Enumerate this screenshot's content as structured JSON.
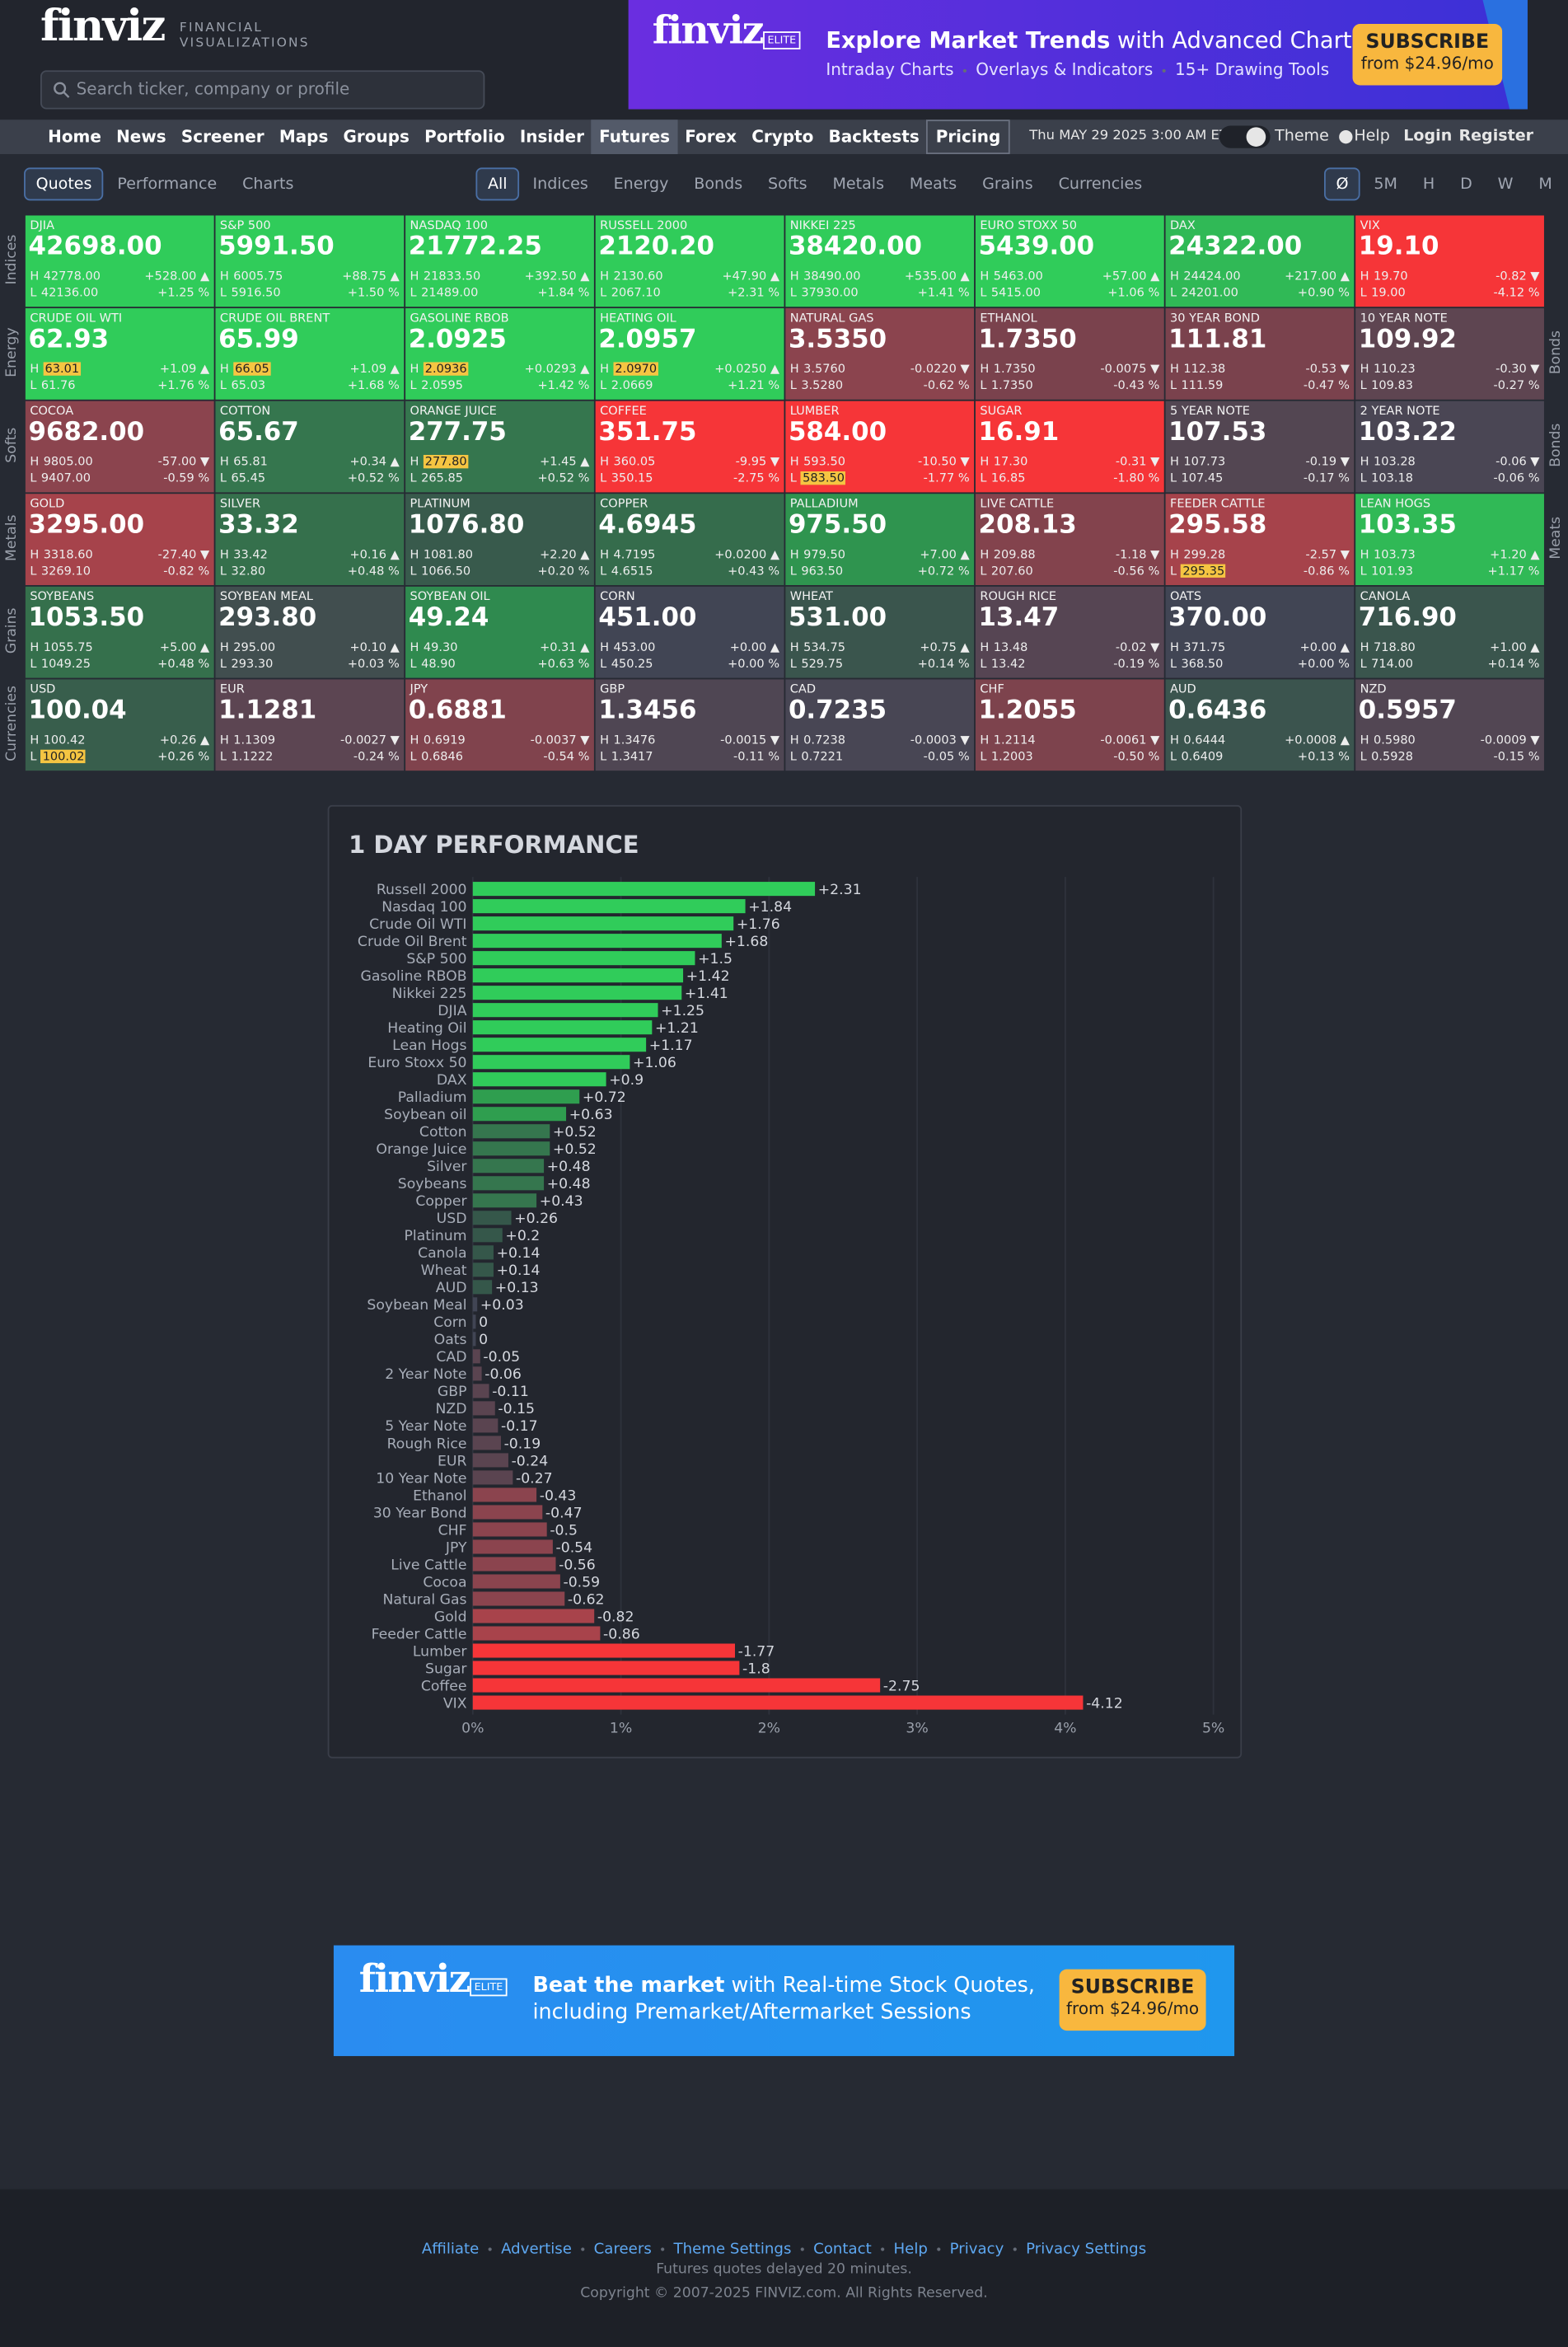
{
  "header": {
    "logo": "finviz",
    "logo_sub_1": "FINANCIAL",
    "logo_sub_2": "VISUALIZATIONS",
    "search_placeholder": "Search ticker, company or profile"
  },
  "top_banner": {
    "brand": "finviz",
    "badge": "ELITE",
    "headline_bold": "Explore Market Trends",
    "headline_rest": " with Advanced Charts",
    "features": [
      "Intraday Charts",
      "Overlays & Indicators",
      "15+ Drawing Tools"
    ],
    "button": "SUBSCRIBE",
    "price": "from $24.96/mo"
  },
  "nav": {
    "items": [
      "Home",
      "News",
      "Screener",
      "Maps",
      "Groups",
      "Portfolio",
      "Insider",
      "Futures",
      "Forex",
      "Crypto",
      "Backtests",
      "Pricing"
    ],
    "active": 7,
    "boxed": 11,
    "datetime": "Thu MAY 29 2025 3:00 AM ET",
    "right_links": [
      "Theme",
      "Help",
      "Login",
      "Register"
    ]
  },
  "tabs": {
    "views": [
      "Quotes",
      "Performance",
      "Charts"
    ],
    "views_active": 0,
    "groups": [
      "All",
      "Indices",
      "Energy",
      "Bonds",
      "Softs",
      "Metals",
      "Meats",
      "Grains",
      "Currencies"
    ],
    "groups_active": 0,
    "periods": [
      "Ø",
      "5M",
      "H",
      "D",
      "W",
      "M"
    ],
    "periods_active": 0
  },
  "grid": {
    "high_label": "H",
    "low_label": "L",
    "side_left": [
      "Indices",
      "Energy",
      "Softs",
      "Metals",
      "Grains",
      "Currencies"
    ],
    "side_right": [
      {
        "label": "Bonds",
        "row": 1
      },
      {
        "label": "Bonds",
        "row": 2
      },
      {
        "label": "Meats",
        "row": 3
      }
    ],
    "rows": [
      [
        {
          "name": "DJIA",
          "price": "42698.00",
          "high": "42778.00",
          "low": "42136.00",
          "change": "+528.00 ▲",
          "pct": "+1.25 %",
          "color": "#30cc5a"
        },
        {
          "name": "S&P 500",
          "price": "5991.50",
          "high": "6005.75",
          "low": "5916.50",
          "change": "+88.75 ▲",
          "pct": "+1.50 %",
          "color": "#30cc5a"
        },
        {
          "name": "NASDAQ 100",
          "price": "21772.25",
          "high": "21833.50",
          "low": "21489.00",
          "change": "+392.50 ▲",
          "pct": "+1.84 %",
          "color": "#30cc5a"
        },
        {
          "name": "RUSSELL 2000",
          "price": "2120.20",
          "high": "2130.60",
          "low": "2067.10",
          "change": "+47.90 ▲",
          "pct": "+2.31 %",
          "color": "#30cc5a"
        },
        {
          "name": "NIKKEI 225",
          "price": "38420.00",
          "high": "38490.00",
          "low": "37930.00",
          "change": "+535.00 ▲",
          "pct": "+1.41 %",
          "color": "#30cc5a"
        },
        {
          "name": "EURO STOXX 50",
          "price": "5439.00",
          "high": "5463.00",
          "low": "5415.00",
          "change": "+57.00 ▲",
          "pct": "+1.06 %",
          "color": "#30cc5a"
        },
        {
          "name": "DAX",
          "price": "24322.00",
          "high": "24424.00",
          "low": "24201.00",
          "change": "+217.00 ▲",
          "pct": "+0.90 %",
          "color": "#30b956"
        },
        {
          "name": "VIX",
          "price": "19.10",
          "high": "19.70",
          "low": "19.00",
          "change": "-0.82 ▼",
          "pct": "-4.12 %",
          "color": "#f63538"
        }
      ],
      [
        {
          "name": "CRUDE OIL WTI",
          "price": "62.93",
          "high": "63.01",
          "low": "61.76",
          "change": "+1.09 ▲",
          "pct": "+1.76 %",
          "color": "#30cc5a",
          "hl": "high"
        },
        {
          "name": "CRUDE OIL BRENT",
          "price": "65.99",
          "high": "66.05",
          "low": "65.03",
          "change": "+1.09 ▲",
          "pct": "+1.68 %",
          "color": "#30cc5a",
          "hl": "high"
        },
        {
          "name": "GASOLINE RBOB",
          "price": "2.0925",
          "high": "2.0936",
          "low": "2.0595",
          "change": "+0.0293 ▲",
          "pct": "+1.42 %",
          "color": "#30cc5a",
          "hl": "high"
        },
        {
          "name": "HEATING OIL",
          "price": "2.0957",
          "high": "2.0970",
          "low": "2.0669",
          "change": "+0.0250 ▲",
          "pct": "+1.21 %",
          "color": "#30cc5a",
          "hl": "high"
        },
        {
          "name": "NATURAL GAS",
          "price": "3.5350",
          "high": "3.5760",
          "low": "3.5280",
          "change": "-0.0220 ▼",
          "pct": "-0.62 %",
          "color": "#8b444e"
        },
        {
          "name": "ETHANOL",
          "price": "1.7350",
          "high": "1.7350",
          "low": "1.7350",
          "change": "-0.0075 ▼",
          "pct": "-0.43 %",
          "color": "#7a424d"
        },
        {
          "name": "30 YEAR BOND",
          "price": "111.81",
          "high": "112.38",
          "low": "111.59",
          "change": "-0.53 ▼",
          "pct": "-0.47 %",
          "color": "#7a424d"
        },
        {
          "name": "10 YEAR NOTE",
          "price": "109.92",
          "high": "110.23",
          "low": "109.83",
          "change": "-0.30 ▼",
          "pct": "-0.27 %",
          "color": "#5e4551"
        }
      ],
      [
        {
          "name": "COCOA",
          "price": "9682.00",
          "high": "9805.00",
          "low": "9407.00",
          "change": "-57.00 ▼",
          "pct": "-0.59 %",
          "color": "#8b444e"
        },
        {
          "name": "COTTON",
          "price": "65.67",
          "high": "65.81",
          "low": "65.45",
          "change": "+0.34 ▲",
          "pct": "+0.52 %",
          "color": "#35764e"
        },
        {
          "name": "ORANGE JUICE",
          "price": "277.75",
          "high": "277.80",
          "low": "265.85",
          "change": "+1.45 ▲",
          "pct": "+0.52 %",
          "color": "#35764e",
          "hl": "high"
        },
        {
          "name": "COFFEE",
          "price": "351.75",
          "high": "360.05",
          "low": "350.15",
          "change": "-9.95 ▼",
          "pct": "-2.75 %",
          "color": "#f63538"
        },
        {
          "name": "LUMBER",
          "price": "584.00",
          "high": "593.50",
          "low": "583.50",
          "change": "-10.50 ▼",
          "pct": "-1.77 %",
          "color": "#f63538",
          "hl": "low"
        },
        {
          "name": "SUGAR",
          "price": "16.91",
          "high": "17.30",
          "low": "16.85",
          "change": "-0.31 ▼",
          "pct": "-1.80 %",
          "color": "#f63538"
        },
        {
          "name": "5 YEAR NOTE",
          "price": "107.53",
          "high": "107.73",
          "low": "107.45",
          "change": "-0.19 ▼",
          "pct": "-0.17 %",
          "color": "#534652"
        },
        {
          "name": "2 YEAR NOTE",
          "price": "103.22",
          "high": "103.28",
          "low": "103.18",
          "change": "-0.06 ▼",
          "pct": "-0.06 %",
          "color": "#4a4654"
        }
      ],
      [
        {
          "name": "GOLD",
          "price": "3295.00",
          "high": "3318.60",
          "low": "3269.10",
          "change": "-27.40 ▼",
          "pct": "-0.82 %",
          "color": "#a6434b"
        },
        {
          "name": "SILVER",
          "price": "33.32",
          "high": "33.42",
          "low": "32.80",
          "change": "+0.16 ▲",
          "pct": "+0.48 %",
          "color": "#35704c"
        },
        {
          "name": "PLATINUM",
          "price": "1076.80",
          "high": "1081.80",
          "low": "1066.50",
          "change": "+2.20 ▲",
          "pct": "+0.20 %",
          "color": "#385a4c"
        },
        {
          "name": "COPPER",
          "price": "4.6945",
          "high": "4.7195",
          "low": "4.6515",
          "change": "+0.0200 ▲",
          "pct": "+0.43 %",
          "color": "#356c4c"
        },
        {
          "name": "PALLADIUM",
          "price": "975.50",
          "high": "979.50",
          "low": "963.50",
          "change": "+7.00 ▲",
          "pct": "+0.72 %",
          "color": "#2f944f"
        },
        {
          "name": "LIVE CATTLE",
          "price": "208.13",
          "high": "209.88",
          "low": "207.60",
          "change": "-1.18 ▼",
          "pct": "-0.56 %",
          "color": "#83434d"
        },
        {
          "name": "FEEDER CATTLE",
          "price": "295.58",
          "high": "299.28",
          "low": "295.35",
          "change": "-2.57 ▼",
          "pct": "-0.86 %",
          "color": "#a6434b",
          "hl": "low"
        },
        {
          "name": "LEAN HOGS",
          "price": "103.35",
          "high": "103.73",
          "low": "101.93",
          "change": "+1.20 ▲",
          "pct": "+1.17 %",
          "color": "#30b956"
        }
      ],
      [
        {
          "name": "SOYBEANS",
          "price": "1053.50",
          "high": "1055.75",
          "low": "1049.25",
          "change": "+5.00 ▲",
          "pct": "+0.48 %",
          "color": "#35704c"
        },
        {
          "name": "SOYBEAN MEAL",
          "price": "293.80",
          "high": "295.00",
          "low": "293.30",
          "change": "+0.10 ▲",
          "pct": "+0.03 %",
          "color": "#414e4f"
        },
        {
          "name": "SOYBEAN OIL",
          "price": "49.24",
          "high": "49.30",
          "low": "48.90",
          "change": "+0.31 ▲",
          "pct": "+0.63 %",
          "color": "#2f8a4f"
        },
        {
          "name": "CORN",
          "price": "451.00",
          "high": "453.00",
          "low": "450.25",
          "change": "+0.00 ▲",
          "pct": "+0.00 %",
          "color": "#414554"
        },
        {
          "name": "WHEAT",
          "price": "531.00",
          "high": "534.75",
          "low": "529.75",
          "change": "+0.75 ▲",
          "pct": "+0.14 %",
          "color": "#3a554d"
        },
        {
          "name": "ROUGH RICE",
          "price": "13.47",
          "high": "13.48",
          "low": "13.42",
          "change": "-0.02 ▼",
          "pct": "-0.19 %",
          "color": "#564553"
        },
        {
          "name": "OATS",
          "price": "370.00",
          "high": "371.75",
          "low": "368.50",
          "change": "+0.00 ▲",
          "pct": "+0.00 %",
          "color": "#414554"
        },
        {
          "name": "CANOLA",
          "price": "716.90",
          "high": "718.80",
          "low": "714.00",
          "change": "+1.00 ▲",
          "pct": "+0.14 %",
          "color": "#3a554d"
        }
      ],
      [
        {
          "name": "USD",
          "price": "100.04",
          "high": "100.42",
          "low": "100.02",
          "change": "+0.26 ▲",
          "pct": "+0.26 %",
          "color": "#385e4c",
          "hl": "low"
        },
        {
          "name": "EUR",
          "price": "1.1281",
          "high": "1.1309",
          "low": "1.1222",
          "change": "-0.0027 ▼",
          "pct": "-0.24 %",
          "color": "#5c4552"
        },
        {
          "name": "JPY",
          "price": "0.6881",
          "high": "0.6919",
          "low": "0.6846",
          "change": "-0.0037 ▼",
          "pct": "-0.54 %",
          "color": "#80434d"
        },
        {
          "name": "GBP",
          "price": "1.3456",
          "high": "1.3476",
          "low": "1.3417",
          "change": "-0.0015 ▼",
          "pct": "-0.11 %",
          "color": "#4f4653"
        },
        {
          "name": "CAD",
          "price": "0.7235",
          "high": "0.7238",
          "low": "0.7221",
          "change": "-0.0003 ▼",
          "pct": "-0.05 %",
          "color": "#484654"
        },
        {
          "name": "CHF",
          "price": "1.2055",
          "high": "1.2114",
          "low": "1.2003",
          "change": "-0.0061 ▼",
          "pct": "-0.50 %",
          "color": "#7d434d"
        },
        {
          "name": "AUD",
          "price": "0.6436",
          "high": "0.6444",
          "low": "0.6409",
          "change": "+0.0008 ▲",
          "pct": "+0.13 %",
          "color": "#3b544e"
        },
        {
          "name": "NZD",
          "price": "0.5957",
          "high": "0.5980",
          "low": "0.5928",
          "change": "-0.0009 ▼",
          "pct": "-0.15 %",
          "color": "#524653"
        }
      ]
    ]
  },
  "chart_data": {
    "type": "bar",
    "orientation": "horizontal",
    "title": "1 DAY PERFORMANCE",
    "categories": [
      "Russell 2000",
      "Nasdaq 100",
      "Crude Oil WTI",
      "Crude Oil Brent",
      "S&P 500",
      "Gasoline RBOB",
      "Nikkei 225",
      "DJIA",
      "Heating Oil",
      "Lean Hogs",
      "Euro Stoxx 50",
      "DAX",
      "Palladium",
      "Soybean oil",
      "Cotton",
      "Orange Juice",
      "Silver",
      "Soybeans",
      "Copper",
      "USD",
      "Platinum",
      "Canola",
      "Wheat",
      "AUD",
      "Soybean Meal",
      "Corn",
      "Oats",
      "CAD",
      "2 Year Note",
      "GBP",
      "NZD",
      "5 Year Note",
      "Rough Rice",
      "EUR",
      "10 Year Note",
      "Ethanol",
      "30 Year Bond",
      "CHF",
      "JPY",
      "Live Cattle",
      "Cocoa",
      "Natural Gas",
      "Gold",
      "Feeder Cattle",
      "Lumber",
      "Sugar",
      "Coffee",
      "VIX"
    ],
    "values": [
      2.31,
      1.84,
      1.76,
      1.68,
      1.5,
      1.42,
      1.41,
      1.25,
      1.21,
      1.17,
      1.06,
      0.9,
      0.72,
      0.63,
      0.52,
      0.52,
      0.48,
      0.48,
      0.43,
      0.26,
      0.2,
      0.14,
      0.14,
      0.13,
      0.03,
      0,
      0,
      -0.05,
      -0.06,
      -0.11,
      -0.15,
      -0.17,
      -0.19,
      -0.24,
      -0.27,
      -0.43,
      -0.47,
      -0.5,
      -0.54,
      -0.56,
      -0.59,
      -0.62,
      -0.82,
      -0.86,
      -1.77,
      -1.8,
      -2.75,
      -4.12
    ],
    "value_labels": [
      "+2.31",
      "+1.84",
      "+1.76",
      "+1.68",
      "+1.5",
      "+1.42",
      "+1.41",
      "+1.25",
      "+1.21",
      "+1.17",
      "+1.06",
      "+0.9",
      "+0.72",
      "+0.63",
      "+0.52",
      "+0.52",
      "+0.48",
      "+0.48",
      "+0.43",
      "+0.26",
      "+0.2",
      "+0.14",
      "+0.14",
      "+0.13",
      "+0.03",
      "0",
      "0",
      "-0.05",
      "-0.06",
      "-0.11",
      "-0.15",
      "-0.17",
      "-0.19",
      "-0.24",
      "-0.27",
      "-0.43",
      "-0.47",
      "-0.5",
      "-0.54",
      "-0.56",
      "-0.59",
      "-0.62",
      "-0.82",
      "-0.86",
      "-1.77",
      "-1.8",
      "-2.75",
      "-4.12"
    ],
    "colors": [
      "#30cc5a",
      "#30cc5a",
      "#30cc5a",
      "#30cc5a",
      "#30cc5a",
      "#30cc5a",
      "#30cc5a",
      "#30cc5a",
      "#30cc5a",
      "#30cc5a",
      "#30cc5a",
      "#30cc5a",
      "#2f9e4f",
      "#2f9e4f",
      "#35764e",
      "#35764e",
      "#35764e",
      "#35764e",
      "#35764e",
      "#35574a",
      "#35574a",
      "#35574a",
      "#35574a",
      "#35574a",
      "#414554",
      "#414554",
      "#414554",
      "#5a4450",
      "#5a4450",
      "#5a4450",
      "#5a4450",
      "#5a4450",
      "#5a4450",
      "#5a4450",
      "#5a4450",
      "#8b444e",
      "#8b444e",
      "#8b444e",
      "#8b444e",
      "#8b444e",
      "#8b444e",
      "#8b444e",
      "#a8434b",
      "#a8434b",
      "#f63538",
      "#f63538",
      "#f63538",
      "#f63538"
    ],
    "xlim": [
      0,
      5
    ],
    "xticks": [
      {
        "value": 0,
        "label": "0%"
      },
      {
        "value": 1,
        "label": "1%"
      },
      {
        "value": 2,
        "label": "2%"
      },
      {
        "value": 3,
        "label": "3%"
      },
      {
        "value": 4,
        "label": "4%"
      },
      {
        "value": 5,
        "label": "5%"
      }
    ],
    "grid": true
  },
  "bottom_banner": {
    "brand": "finviz",
    "badge": "ELITE",
    "line1_bold": "Beat the market",
    "line1_rest": " with Real-time Stock Quotes,",
    "line2": "including Premarket/Aftermarket Sessions",
    "button": "SUBSCRIBE",
    "price": "from $24.96/mo"
  },
  "footer": {
    "links": [
      "Affiliate",
      "Advertise",
      "Careers",
      "Theme Settings",
      "Contact",
      "Help",
      "Privacy",
      "Privacy Settings"
    ],
    "note": "Futures quotes delayed 20 minutes.",
    "copyright": "Copyright © 2007-2025 FINVIZ.com. All Rights Reserved."
  }
}
